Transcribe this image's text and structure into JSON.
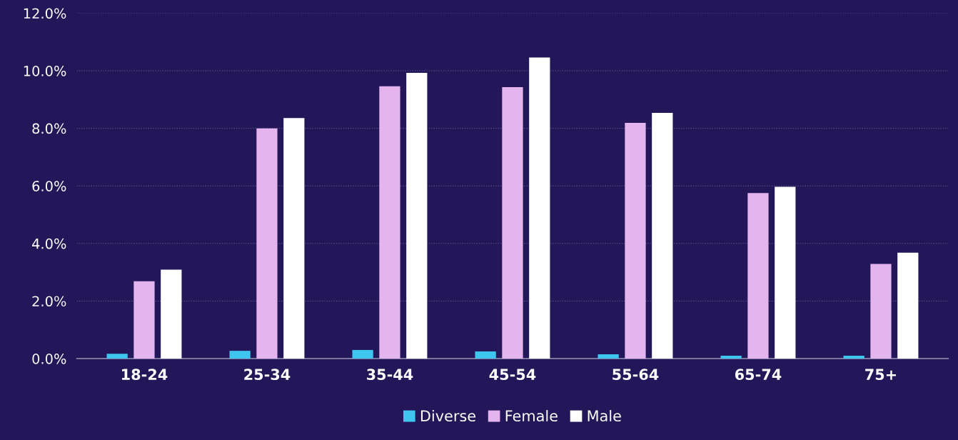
{
  "chart_data": {
    "type": "bar",
    "categories": [
      "18-24",
      "25-34",
      "35-44",
      "45-54",
      "55-64",
      "65-74",
      "75+"
    ],
    "series": [
      {
        "name": "Diverse",
        "color": "#3ec6ee",
        "values": [
          0.17,
          0.27,
          0.3,
          0.25,
          0.15,
          0.1,
          0.1
        ]
      },
      {
        "name": "Female",
        "color": "#e4b4ee",
        "values": [
          2.69,
          8.0,
          9.46,
          9.43,
          8.19,
          5.75,
          3.29
        ]
      },
      {
        "name": "Male",
        "color": "#ffffff",
        "values": [
          3.09,
          8.36,
          9.93,
          10.46,
          8.54,
          5.97,
          3.68
        ]
      }
    ],
    "ylim": [
      0,
      12
    ],
    "yticks": [
      {
        "value": 0,
        "label": "0.0%"
      },
      {
        "value": 2,
        "label": "2.0%"
      },
      {
        "value": 4,
        "label": "4.0%"
      },
      {
        "value": 6,
        "label": "6.0%"
      },
      {
        "value": 8,
        "label": "8.0%"
      },
      {
        "value": 10,
        "label": "10.0%"
      },
      {
        "value": 12,
        "label": "12.0%"
      }
    ],
    "grid": "y",
    "legend": "bottom"
  }
}
